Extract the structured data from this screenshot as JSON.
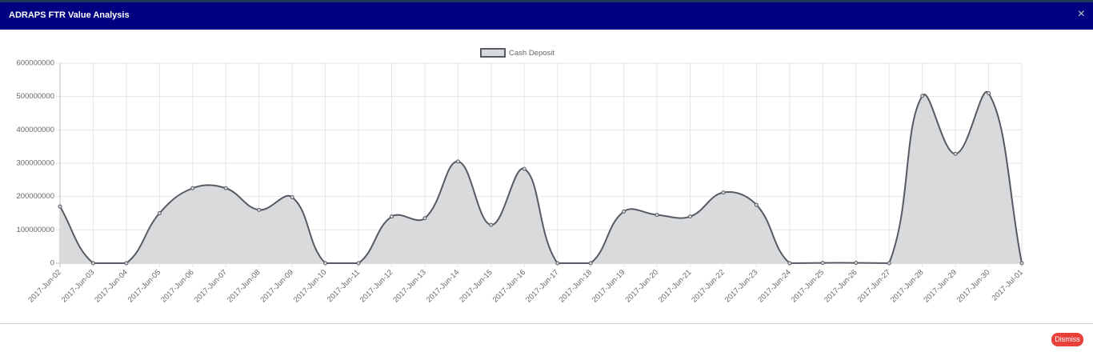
{
  "modal": {
    "title": "ADRAPS FTR Value Analysis",
    "close": "×",
    "button": "Dismiss"
  },
  "chart_data": {
    "type": "line",
    "categories": [
      "2017-Jun-02",
      "2017-Jun-03",
      "2017-Jun-04",
      "2017-Jun-05",
      "2017-Jun-06",
      "2017-Jun-07",
      "2017-Jun-08",
      "2017-Jun-09",
      "2017-Jun-10",
      "2017-Jun-11",
      "2017-Jun-12",
      "2017-Jun-13",
      "2017-Jun-14",
      "2017-Jun-15",
      "2017-Jun-16",
      "2017-Jun-17",
      "2017-Jun-18",
      "2017-Jun-19",
      "2017-Jun-20",
      "2017-Jun-21",
      "2017-Jun-22",
      "2017-Jun-23",
      "2017-Jun-24",
      "2017-Jun-25",
      "2017-Jun-26",
      "2017-Jun-27",
      "2017-Jun-28",
      "2017-Jun-29",
      "2017-Jun-30",
      "2017-Jul-01"
    ],
    "series": [
      {
        "name": "Cash Deposit",
        "color": "#555a63",
        "fill": "#d9dadc",
        "values": [
          170000000,
          0,
          0,
          150000000,
          225000000,
          225000000,
          160000000,
          198000000,
          0,
          0,
          140000000,
          135000000,
          305000000,
          115000000,
          283000000,
          0,
          0,
          155000000,
          145000000,
          140000000,
          212000000,
          175000000,
          0,
          1000000,
          1000000,
          0,
          502000000,
          328000000,
          510000000,
          0
        ]
      }
    ],
    "ylim": [
      0,
      600000000
    ],
    "yticks": [
      0,
      100000000,
      200000000,
      300000000,
      400000000,
      500000000,
      600000000
    ],
    "grid": true,
    "legend": "top"
  }
}
